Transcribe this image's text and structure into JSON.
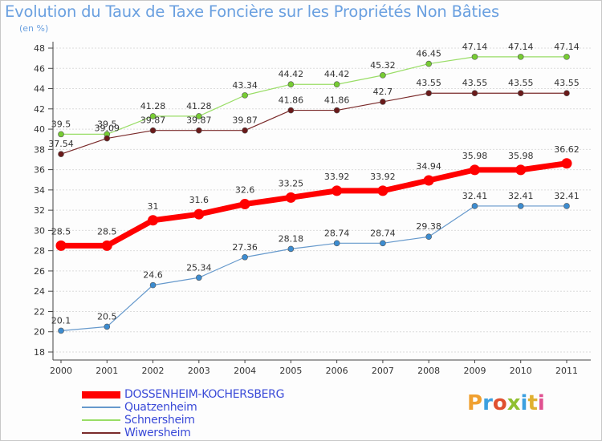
{
  "title": "Evolution du Taux de Taxe Foncière sur les Propriétés Non Bâties",
  "unit_label": "(en %)",
  "logo": {
    "letters": [
      "P",
      "r",
      "o",
      "x",
      "i",
      "t",
      "i"
    ],
    "colors": [
      "#f0a030",
      "#3ca0e0",
      "#e05030",
      "#90c030",
      "#3ca0e0",
      "#e0b030",
      "#e05090"
    ]
  },
  "chart_data": {
    "type": "line",
    "x": [
      "2000",
      "2001",
      "2002",
      "2003",
      "2004",
      "2005",
      "2006",
      "2007",
      "2008",
      "2009",
      "2010",
      "2011"
    ],
    "ylim": [
      18,
      48
    ],
    "yticks": [
      18,
      20,
      22,
      24,
      26,
      28,
      30,
      32,
      34,
      36,
      38,
      40,
      42,
      44,
      46,
      48
    ],
    "grid": "horizontal",
    "legend_position": "bottom-left",
    "series": [
      {
        "name": "DOSSENHEIM-KOCHERSBERG",
        "color": "#ff0000",
        "marker": "#ff0000",
        "width": 7,
        "r": 6.5,
        "values": [
          28.5,
          28.5,
          31,
          31.6,
          32.6,
          33.25,
          33.92,
          33.92,
          34.94,
          35.98,
          35.98,
          36.62
        ],
        "labels": [
          "28.5",
          "28.5",
          "31",
          "31.6",
          "32.6",
          "33.25",
          "33.92",
          "33.92",
          "34.94",
          "35.98",
          "35.98",
          "36.62"
        ]
      },
      {
        "name": "Quatzenheim",
        "color": "#6699cc",
        "marker": "#3c8cd0",
        "width": 1.2,
        "r": 3.5,
        "values": [
          20.1,
          20.5,
          24.6,
          25.34,
          27.36,
          28.18,
          28.74,
          28.74,
          29.38,
          32.41,
          32.41,
          32.41
        ],
        "labels": [
          "20.1",
          "20.5",
          "24.6",
          "25.34",
          "27.36",
          "28.18",
          "28.74",
          "28.74",
          "29.38",
          "32.41",
          "32.41",
          "32.41"
        ]
      },
      {
        "name": "Schnersheim",
        "color": "#99dd66",
        "marker": "#77cc33",
        "width": 1.2,
        "r": 3.5,
        "values": [
          39.5,
          39.5,
          41.28,
          41.28,
          43.34,
          44.42,
          44.42,
          45.32,
          46.45,
          47.14,
          47.14,
          47.14
        ],
        "labels": [
          "39.5",
          "39.5",
          "41.28",
          "41.28",
          "43.34",
          "44.42",
          "44.42",
          "45.32",
          "46.45",
          "47.14",
          "47.14",
          "47.14"
        ]
      },
      {
        "name": "Wiwersheim",
        "color": "#7a2a2a",
        "marker": "#6a1a1a",
        "width": 1.2,
        "r": 3.5,
        "values": [
          37.54,
          39.09,
          39.87,
          39.87,
          39.87,
          41.86,
          41.86,
          42.7,
          43.55,
          43.55,
          43.55,
          43.55
        ],
        "labels": [
          "37.54",
          "39.09",
          "39.87",
          "39.87",
          "39.87",
          "41.86",
          "41.86",
          "42.7",
          "43.55",
          "43.55",
          "43.55",
          "43.55"
        ]
      }
    ]
  }
}
